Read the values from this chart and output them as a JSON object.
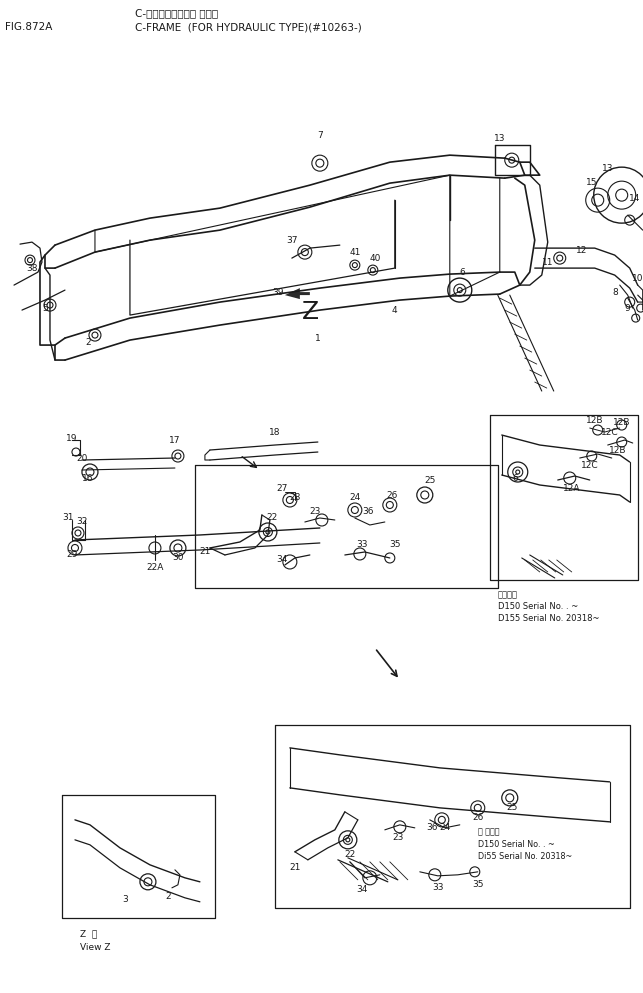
{
  "title_japanese": "C-フレーム（アーム ジキ）",
  "title_english": "C-FRAME  (FOR HYDRAULIC TYPE)(#10263-)",
  "fig_label": "FIG.872A",
  "bg_color": "#ffffff",
  "line_color": "#1a1a1a",
  "text_color": "#1a1a1a",
  "fig_width": 6.43,
  "fig_height": 9.93,
  "dpi": 100,
  "inset1_serial1": "D150 Serial No. . ~",
  "inset1_serial2": "D155 Serial No. 20318~",
  "inset2_serial1": "D150 Serial No. . ~",
  "inset2_serial2": "Di55 Serial No. 20318~",
  "view_z_line1": "Z  地",
  "view_z_line2": "View Z"
}
